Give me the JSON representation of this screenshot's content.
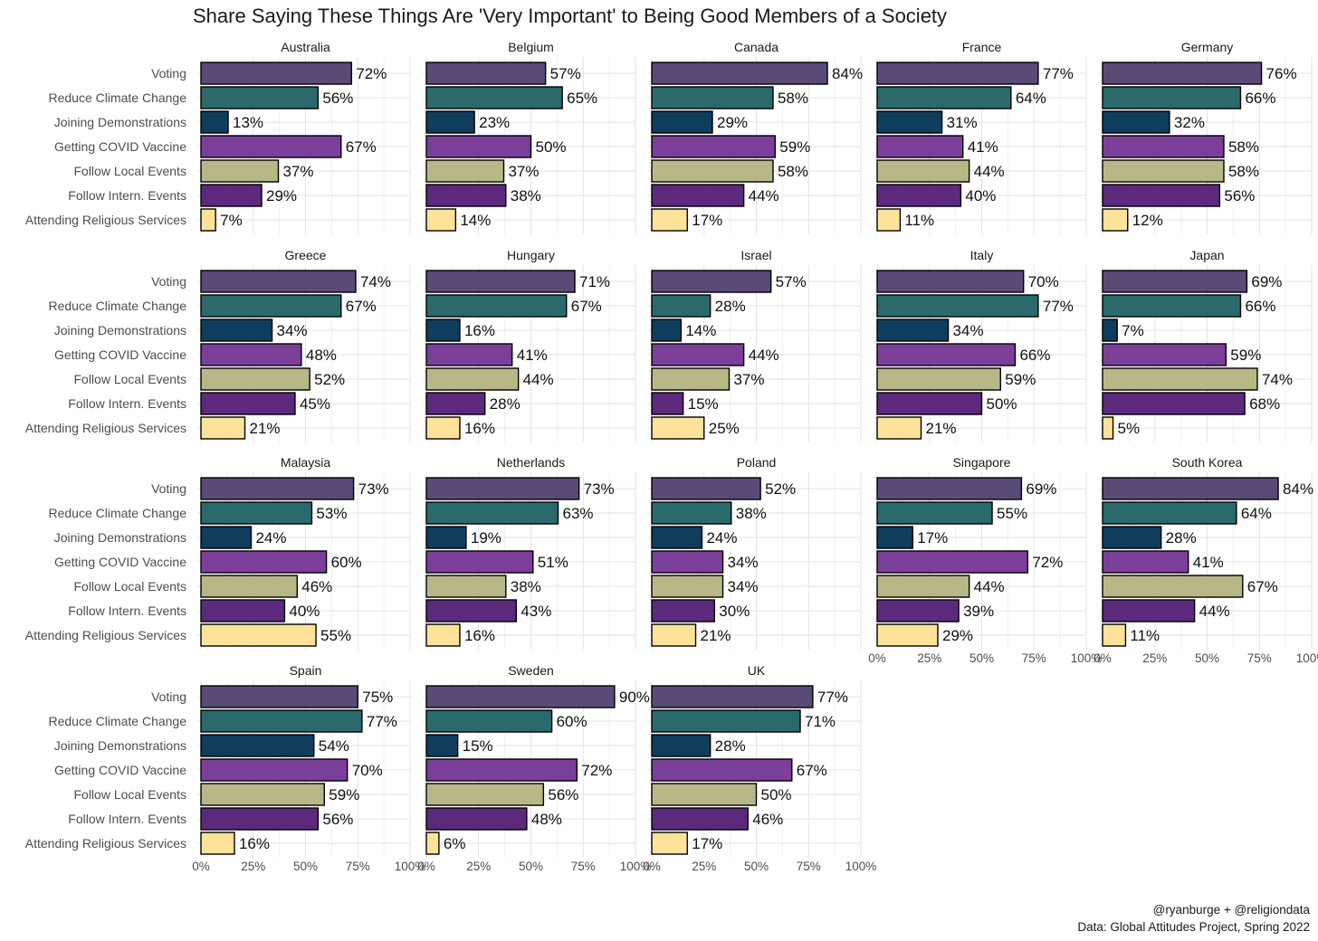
{
  "chart_data": {
    "type": "bar",
    "orientation": "horizontal",
    "title": "Share Saying These Things Are 'Very Important' to Being Good Members of a Society",
    "caption": [
      "@ryanburge + @religiondata",
      "Data: Global Attitudes Project, Spring 2022"
    ],
    "categories": [
      "Voting",
      "Reduce Climate Change",
      "Joining Demonstrations",
      "Getting COVID Vaccine",
      "Follow Local Events",
      "Follow Intern. Events",
      "Attending Religious Services"
    ],
    "category_colors": [
      "#5a4a78",
      "#2a6a6c",
      "#0f3d5e",
      "#7b3f9a",
      "#b8b788",
      "#5c2a7c",
      "#fde29a"
    ],
    "x_ticks": [
      "0%",
      "25%",
      "50%",
      "75%",
      "100%"
    ],
    "xlim": [
      0,
      100
    ],
    "grid": true,
    "facets": [
      {
        "name": "Australia",
        "values": [
          72,
          56,
          13,
          67,
          37,
          29,
          7
        ]
      },
      {
        "name": "Belgium",
        "values": [
          57,
          65,
          23,
          50,
          37,
          38,
          14
        ]
      },
      {
        "name": "Canada",
        "values": [
          84,
          58,
          29,
          59,
          58,
          44,
          17
        ]
      },
      {
        "name": "France",
        "values": [
          77,
          64,
          31,
          41,
          44,
          40,
          11
        ]
      },
      {
        "name": "Germany",
        "values": [
          76,
          66,
          32,
          58,
          58,
          56,
          12
        ]
      },
      {
        "name": "Greece",
        "values": [
          74,
          67,
          34,
          48,
          52,
          45,
          21
        ]
      },
      {
        "name": "Hungary",
        "values": [
          71,
          67,
          16,
          41,
          44,
          28,
          16
        ]
      },
      {
        "name": "Israel",
        "values": [
          57,
          28,
          14,
          44,
          37,
          15,
          25
        ]
      },
      {
        "name": "Italy",
        "values": [
          70,
          77,
          34,
          66,
          59,
          50,
          21
        ]
      },
      {
        "name": "Japan",
        "values": [
          69,
          66,
          7,
          59,
          74,
          68,
          5
        ]
      },
      {
        "name": "Malaysia",
        "values": [
          73,
          53,
          24,
          60,
          46,
          40,
          55
        ]
      },
      {
        "name": "Netherlands",
        "values": [
          73,
          63,
          19,
          51,
          38,
          43,
          16
        ]
      },
      {
        "name": "Poland",
        "values": [
          52,
          38,
          24,
          34,
          34,
          30,
          21
        ]
      },
      {
        "name": "Singapore",
        "values": [
          69,
          55,
          17,
          72,
          44,
          39,
          29
        ]
      },
      {
        "name": "South Korea",
        "values": [
          84,
          64,
          28,
          41,
          67,
          44,
          11
        ]
      },
      {
        "name": "Spain",
        "values": [
          75,
          77,
          54,
          70,
          59,
          56,
          16
        ]
      },
      {
        "name": "Sweden",
        "values": [
          90,
          60,
          15,
          72,
          56,
          48,
          6
        ]
      },
      {
        "name": "UK",
        "values": [
          77,
          71,
          28,
          67,
          50,
          46,
          17
        ]
      }
    ]
  }
}
